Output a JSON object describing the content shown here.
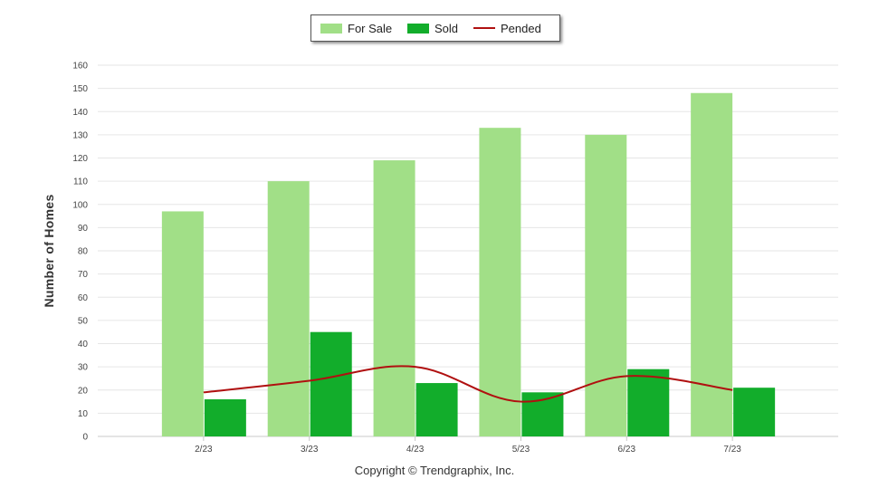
{
  "legend": {
    "for_sale": "For Sale",
    "sold": "Sold",
    "pended": "Pended"
  },
  "footer": {
    "copyright": "Copyright © Trendgraphix, Inc."
  },
  "colors": {
    "for_sale": "#a1df87",
    "sold": "#12ad2b",
    "pended": "#b01010",
    "grid": "#e6e6e6",
    "axis_text": "#444444"
  },
  "chart_data": {
    "type": "bar",
    "categories": [
      "2/23",
      "3/23",
      "4/23",
      "5/23",
      "6/23",
      "7/23"
    ],
    "series": [
      {
        "name": "For Sale",
        "type": "bar",
        "values": [
          97,
          110,
          119,
          133,
          130,
          148
        ]
      },
      {
        "name": "Sold",
        "type": "bar",
        "values": [
          16,
          45,
          23,
          19,
          29,
          21
        ]
      },
      {
        "name": "Pended",
        "type": "line",
        "values": [
          19,
          24,
          30,
          15,
          26,
          20
        ]
      }
    ],
    "ylabel": "Number of Homes",
    "xlabel": "",
    "ylim": [
      0,
      160
    ],
    "yticks": [
      0,
      10,
      20,
      30,
      40,
      50,
      60,
      70,
      80,
      90,
      100,
      110,
      120,
      130,
      140,
      150,
      160
    ],
    "grid": true,
    "legend_position": "top-center"
  }
}
